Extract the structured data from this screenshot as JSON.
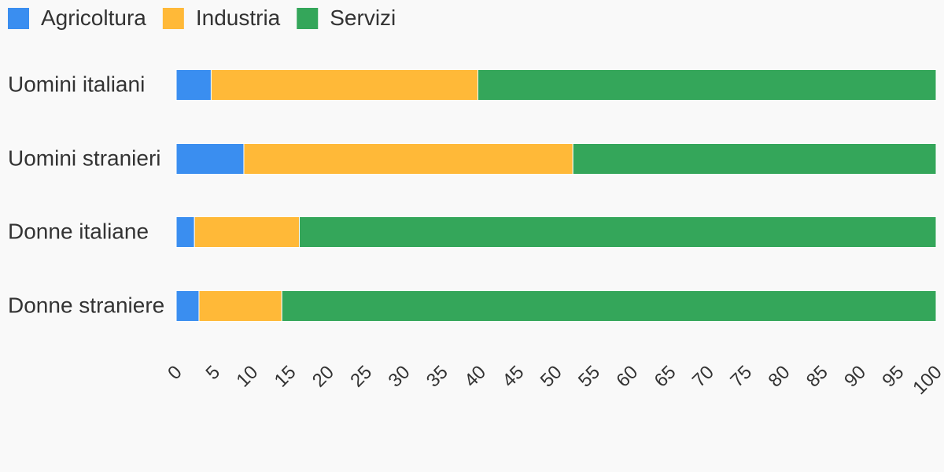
{
  "chart_data": {
    "type": "bar",
    "orientation": "horizontal",
    "stacked": true,
    "categories": [
      "Uomini italiani",
      "Uomini stranieri",
      "Donne italiane",
      "Donne straniere"
    ],
    "series": [
      {
        "name": "Agricoltura",
        "color": "#3a8ef0",
        "values": [
          4.6,
          8.9,
          2.4,
          3.0
        ]
      },
      {
        "name": "Industria",
        "color": "#ffb938",
        "values": [
          35.1,
          43.3,
          13.8,
          10.9
        ]
      },
      {
        "name": "Servizi",
        "color": "#34a65a",
        "values": [
          60.3,
          47.8,
          83.8,
          86.1
        ]
      }
    ],
    "x_ticks": [
      "0",
      "5",
      "10",
      "15",
      "20",
      "25",
      "30",
      "35",
      "40",
      "45",
      "50",
      "55",
      "60",
      "65",
      "70",
      "75",
      "80",
      "85",
      "90",
      "95",
      "100"
    ],
    "xlim": [
      0,
      100
    ],
    "legend_position": "top-left",
    "grid": false
  }
}
